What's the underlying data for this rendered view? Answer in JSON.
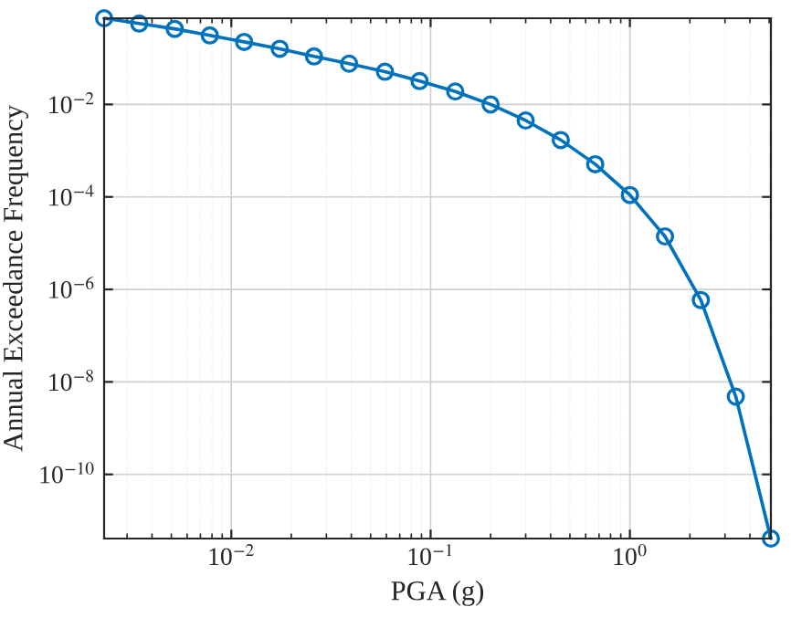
{
  "chart_data": {
    "type": "line",
    "xlabel": "PGA (g)",
    "ylabel": "Annual Exceedance Frequency",
    "x": [
      0.0023,
      0.00345,
      0.0052,
      0.0078,
      0.0116,
      0.0175,
      0.026,
      0.039,
      0.059,
      0.088,
      0.133,
      0.2,
      0.3,
      0.45,
      0.67,
      1.0,
      1.5,
      2.27,
      3.4,
      5.1
    ],
    "series": [
      {
        "color": "#0072bd",
        "values": [
          0.73,
          0.56,
          0.43,
          0.31,
          0.225,
          0.16,
          0.109,
          0.076,
          0.051,
          0.032,
          0.019,
          0.01,
          0.0045,
          0.0017,
          0.00051,
          0.00011,
          1.4e-05,
          5.9e-07,
          4.8e-09,
          4.1e-12
        ]
      }
    ],
    "log": "xy",
    "xlim": [
      0.0023,
      5.1
    ],
    "ylim": [
      4.1e-12,
      0.73
    ],
    "xticks": [
      {
        "value": 0.01,
        "label": "10$^{−2}$"
      },
      {
        "value": 0.1,
        "label": "10$^{−1}$"
      },
      {
        "value": 1,
        "label": "10$^{0}$"
      }
    ],
    "yticks": [
      {
        "value": 1e-10,
        "label": "10$^{−10}$"
      },
      {
        "value": 1e-08,
        "label": "10$^{−8}$"
      },
      {
        "value": 1e-06,
        "label": "10$^{−6}$"
      },
      {
        "value": 0.0001,
        "label": "10$^{−4}$"
      },
      {
        "value": 0.01,
        "label": "10$^{−2}$"
      }
    ],
    "grid": true,
    "marker": "circle",
    "line_style": "solid"
  }
}
